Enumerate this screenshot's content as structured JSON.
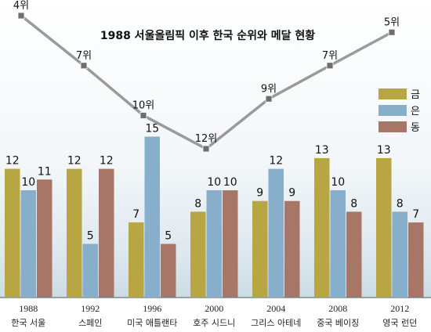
{
  "chart_data": {
    "type": "bar",
    "title": "1988 서울올림픽 이후 한국 순위와 메달 현황",
    "categories": [
      {
        "year": "1988",
        "city": "한국 서울"
      },
      {
        "year": "1992",
        "city": "스페인"
      },
      {
        "year": "1996",
        "city": "미국 애틀랜타"
      },
      {
        "year": "2000",
        "city": "호주 시드니"
      },
      {
        "year": "2004",
        "city": "그리스 아테네"
      },
      {
        "year": "2008",
        "city": "중국 베이징"
      },
      {
        "year": "2012",
        "city": "영국 런던"
      }
    ],
    "series": [
      {
        "name": "금",
        "color": "#b7a643",
        "values": [
          12,
          12,
          7,
          8,
          9,
          13,
          13
        ]
      },
      {
        "name": "은",
        "color": "#87aecb",
        "values": [
          10,
          5,
          15,
          10,
          12,
          10,
          8
        ]
      },
      {
        "name": "동",
        "color": "#a87666",
        "values": [
          11,
          12,
          5,
          10,
          9,
          8,
          7
        ]
      }
    ],
    "ylim": [
      0,
      18
    ],
    "rank_line": {
      "values": [
        4,
        7,
        10,
        12,
        9,
        7,
        5
      ],
      "labels": [
        "4위",
        "7위",
        "10위",
        "12위",
        "9위",
        "7위",
        "5위"
      ],
      "color": "#9a9a9a",
      "marker_color": "#6e6e6e"
    },
    "legend_placement": "right"
  }
}
